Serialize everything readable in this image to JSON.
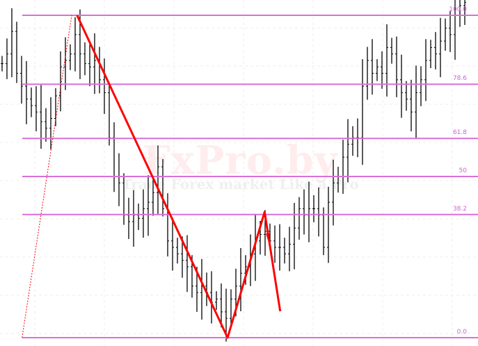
{
  "chart_data": {
    "type": "bar",
    "subtype": "ohlc",
    "title": "",
    "xlabel": "",
    "ylabel": "",
    "ylim": [
      -2.6,
      104.7
    ],
    "grid": true,
    "fib_levels": [
      {
        "value": 100,
        "label": "100.0"
      },
      {
        "value": 78.6,
        "label": "78.6"
      },
      {
        "value": 61.8,
        "label": "61.8"
      },
      {
        "value": 50,
        "label": "50"
      },
      {
        "value": 38.2,
        "label": "38.2"
      },
      {
        "value": 0,
        "label": "0.0"
      }
    ],
    "closes": [
      85,
      88,
      95,
      82,
      78,
      74,
      72,
      70,
      67,
      65,
      68,
      75,
      84,
      86,
      88,
      94,
      88,
      85,
      84,
      86,
      80,
      76,
      62,
      50,
      48,
      38,
      36,
      38,
      37,
      40,
      42,
      45,
      53,
      40,
      30,
      28,
      26,
      24,
      22,
      16,
      14,
      16,
      14,
      11,
      12,
      8,
      6,
      12,
      16,
      20,
      22,
      26,
      30,
      32,
      33,
      30,
      28,
      28,
      26,
      29,
      34,
      40,
      38,
      40,
      40,
      38,
      28,
      42,
      48,
      50,
      56,
      60,
      62,
      62,
      78,
      86,
      82,
      84,
      82,
      90,
      88,
      80,
      76,
      74,
      70,
      76,
      80,
      86,
      90,
      88,
      92,
      96,
      94,
      100,
      103,
      104
    ],
    "zigzag": [
      [
        15.4,
        100
      ],
      [
        46.3,
        0
      ],
      [
        53.9,
        39
      ],
      [
        57.1,
        8.2
      ]
    ],
    "fib_anchor": [
      [
        4.1,
        0
      ],
      [
        14.3,
        100
      ]
    ],
    "colors": {
      "fib": "#d96fd9",
      "zigzag": "#ff0000",
      "bars": "#000000"
    }
  },
  "watermark": {
    "brand": "FxPro.by",
    "tagline": "Trade Forex market Like a Pro"
  }
}
